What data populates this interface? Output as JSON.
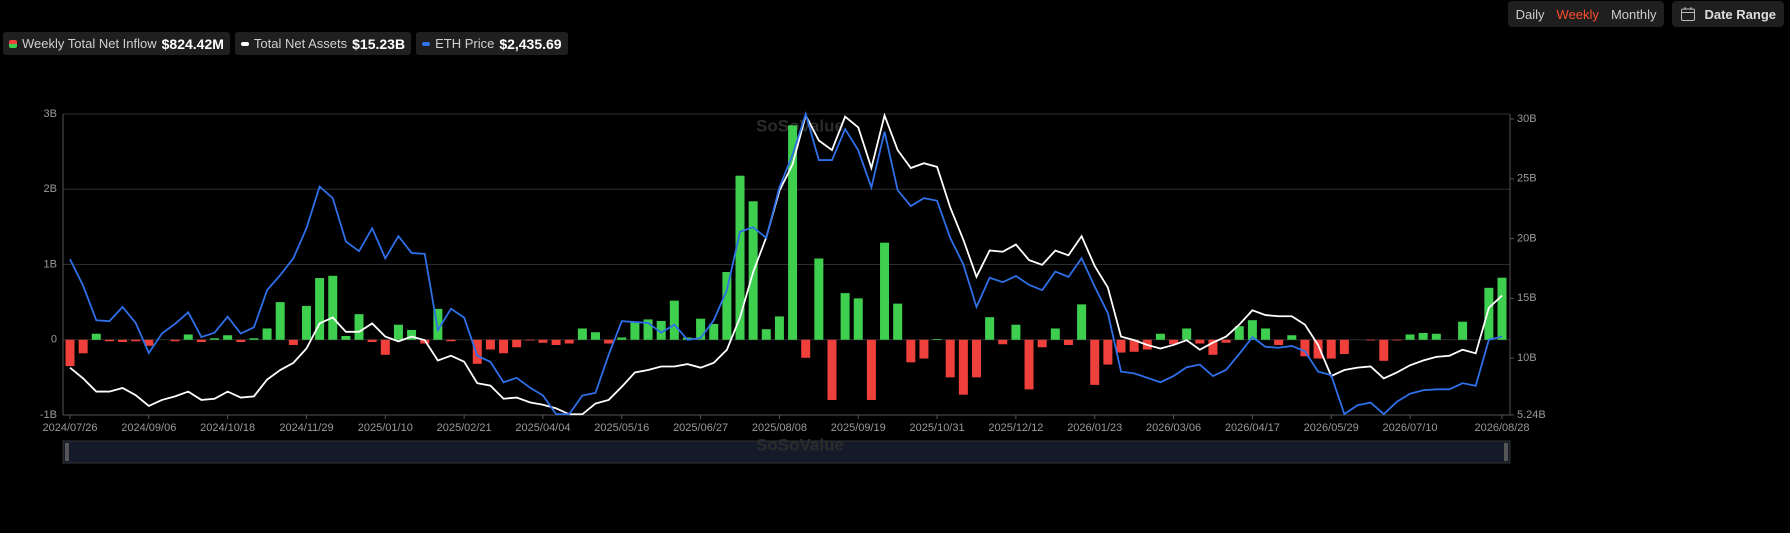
{
  "controls": {
    "periods": [
      "Daily",
      "Weekly",
      "Monthly"
    ],
    "active_period": 1,
    "date_range": "Date Range"
  },
  "chart_data": {
    "type": "combo",
    "watermark": "SoSoValue",
    "categories": [
      "2024/07/26",
      null,
      null,
      null,
      null,
      null,
      "2024/09/06",
      null,
      null,
      null,
      null,
      null,
      "2024/10/18",
      null,
      null,
      null,
      null,
      null,
      "2024/11/29",
      null,
      null,
      null,
      null,
      null,
      "2025/01/10",
      null,
      null,
      null,
      null,
      null,
      "2025/02/21",
      null,
      null,
      null,
      null,
      null,
      "2025/04/04",
      null,
      null,
      null,
      null,
      null,
      "2025/05/16",
      null,
      null,
      null,
      null,
      null,
      "2025/06/27",
      null,
      null,
      null,
      null,
      null,
      "2025/08/08",
      null,
      null,
      null,
      null,
      null,
      "2025/09/19",
      null,
      null,
      null,
      null,
      null,
      "2025/10/31",
      null,
      null,
      null,
      null,
      null,
      "2025/12/12",
      null,
      null,
      null,
      null,
      null,
      "2026/01/23",
      null,
      null,
      null,
      null,
      null,
      "2026/03/06",
      null,
      null,
      null,
      null,
      null,
      "2026/04/17",
      null,
      null,
      null,
      null,
      null,
      "2026/05/29",
      null,
      null,
      null,
      null,
      null,
      "2026/07/10",
      null,
      null,
      null,
      null,
      null,
      null,
      "2026/08/28"
    ],
    "ylim": [
      -1,
      3
    ],
    "yticks": [
      {
        "value": -1,
        "label": "-1B"
      },
      0,
      {
        "value": 1,
        "label": "1B"
      },
      {
        "value": 2,
        "label": "2B"
      },
      {
        "value": 3,
        "label": "3B"
      }
    ],
    "y2lim": [
      5.24,
      30.42
    ],
    "y2ticks": [
      {
        "value": 5.24,
        "label": "5.24B"
      },
      {
        "value": 10,
        "label": "10B"
      },
      {
        "value": 15,
        "label": "15B"
      },
      {
        "value": 20,
        "label": "20B"
      },
      {
        "value": 25,
        "label": "25B"
      },
      {
        "value": 30,
        "label": "30B"
      }
    ],
    "y3lim": [
      1550,
      4950
    ],
    "grid": true,
    "series": [
      {
        "name": "Weekly Total Net Inflow",
        "type": "bar",
        "positive_color": "#3ecf4e",
        "negative_color": "#f0403c",
        "latest_label": "$824.42M",
        "values": [
          -0.35,
          -0.18,
          0.08,
          -0.02,
          -0.03,
          -0.02,
          -0.08,
          0,
          -0.02,
          0.07,
          -0.03,
          0.02,
          0.06,
          -0.03,
          0.02,
          0.15,
          0.5,
          -0.07,
          0.45,
          0.82,
          0.85,
          0.05,
          0.34,
          -0.03,
          -0.2,
          0.2,
          0.13,
          -0.05,
          0.41,
          -0.02,
          0,
          -0.32,
          -0.13,
          -0.18,
          -0.1,
          -0.01,
          -0.04,
          -0.07,
          -0.05,
          0.15,
          0.1,
          -0.05,
          0.03,
          0.24,
          0.27,
          0.25,
          0.52,
          0.03,
          0.28,
          0.21,
          0.9,
          2.18,
          1.84,
          0.14,
          0.31,
          2.85,
          -0.24,
          1.08,
          -0.8,
          0.62,
          0.55,
          -0.8,
          1.29,
          0.48,
          -0.3,
          -0.25,
          0.01,
          -0.5,
          -0.73,
          -0.5,
          0.3,
          -0.06,
          0.2,
          -0.66,
          -0.1,
          0.15,
          -0.07,
          0.47,
          -0.6,
          -0.33,
          -0.17,
          -0.16,
          -0.13,
          0.08,
          -0.06,
          0.15,
          -0.05,
          -0.2,
          -0.04,
          0.18,
          0.26,
          0.15,
          -0.07,
          0.06,
          -0.22,
          -0.25,
          -0.25,
          -0.19,
          0,
          -0.01,
          -0.28,
          -0.01,
          0.07,
          0.09,
          0.08,
          0,
          0.24,
          0,
          0.69,
          0.82442
        ]
      },
      {
        "name": "Total Net Assets",
        "type": "line",
        "axis": "y2",
        "color": "#ffffff",
        "latest_label": "$15.23B",
        "values": [
          9.2,
          8.3,
          7.2,
          7.2,
          7.5,
          6.9,
          6.0,
          6.5,
          6.8,
          7.2,
          6.5,
          6.6,
          7.2,
          6.7,
          6.8,
          8.2,
          9.0,
          9.6,
          10.8,
          12.9,
          13.4,
          12.2,
          12.2,
          12.9,
          11.8,
          11.4,
          11.8,
          11.5,
          9.8,
          10.2,
          9.7,
          7.9,
          7.7,
          6.6,
          6.7,
          6.3,
          6.1,
          5.8,
          5.3,
          5.3,
          6.2,
          6.5,
          7.6,
          8.8,
          9.0,
          9.3,
          9.3,
          9.5,
          9.2,
          9.6,
          10.7,
          13.4,
          17.2,
          20.1,
          24.0,
          26.2,
          30.3,
          28.2,
          27.4,
          30.2,
          29.3,
          25.9,
          30.3,
          27.4,
          25.9,
          26.3,
          26.0,
          22.6,
          19.9,
          16.8,
          19.0,
          18.9,
          19.5,
          18.2,
          17.8,
          19.0,
          18.6,
          20.2,
          17.7,
          15.9,
          11.8,
          11.5,
          11.1,
          10.8,
          11.1,
          11.5,
          10.7,
          11.3,
          11.8,
          12.8,
          14.0,
          13.6,
          13.5,
          13.5,
          12.8,
          11.1,
          8.5,
          9.0,
          9.2,
          9.3,
          8.3,
          8.8,
          9.4,
          9.8,
          10.1,
          10.2,
          10.7,
          10.4,
          14.2,
          15.23
        ]
      },
      {
        "name": "ETH Price",
        "type": "line",
        "axis": "y3",
        "color": "#2f6fe8",
        "latest_label": "$2,435.69",
        "values": [
          3310,
          3010,
          2620,
          2610,
          2770,
          2590,
          2250,
          2470,
          2580,
          2710,
          2430,
          2480,
          2660,
          2470,
          2540,
          2960,
          3130,
          3320,
          3660,
          4130,
          4000,
          3510,
          3400,
          3660,
          3320,
          3570,
          3380,
          3370,
          2510,
          2750,
          2650,
          2220,
          2150,
          1920,
          1970,
          1860,
          1770,
          1560,
          1560,
          1770,
          1800,
          2230,
          2610,
          2600,
          2590,
          2480,
          2570,
          2400,
          2420,
          2620,
          2960,
          3620,
          3670,
          3550,
          4120,
          4490,
          4950,
          4430,
          4430,
          4780,
          4540,
          4120,
          4750,
          4090,
          3910,
          4000,
          3970,
          3550,
          3250,
          2770,
          3100,
          3050,
          3120,
          3020,
          2960,
          3170,
          3110,
          3320,
          3000,
          2700,
          2040,
          2020,
          1970,
          1920,
          1990,
          2090,
          2120,
          1990,
          2060,
          2240,
          2430,
          2320,
          2310,
          2330,
          2270,
          2040,
          2000,
          1560,
          1660,
          1690,
          1560,
          1700,
          1790,
          1830,
          1840,
          1840,
          1910,
          1880,
          2400,
          2435.69
        ]
      }
    ]
  }
}
